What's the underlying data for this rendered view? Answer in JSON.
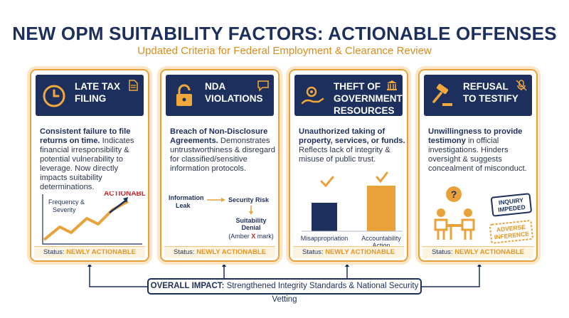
{
  "header": {
    "title": "NEW OPM SUITABILITY FACTORS: ACTIONABLE OFFENSES",
    "subtitle": "Updated Criteria for Federal Employment & Clearance Review"
  },
  "status_label": "Status:",
  "cards": [
    {
      "title": "LATE TAX\nFILING",
      "lead": "Consistent failure to file returns on time.",
      "body": " Indicates financial irresponsibility & potential vulnerability to leverage. Now directly impacts suitability determinations.",
      "status": "NEWLY ACTIONABLE",
      "viz": {
        "tag": "ACTIONABLE",
        "label": "Frequency &\nSeverity"
      }
    },
    {
      "title": "NDA\nVIOLATIONS",
      "lead": "Breach of Non-Disclosure Agreements.",
      "body": " Demonstrates untrustworthiness & disregard for classified/sensitive information protocols.",
      "status": "NEWLY ACTIONABLE",
      "viz": {
        "a": "Information\nLeak",
        "b": "Security Risk",
        "c": "Suitability\nDenial",
        "note": "(Amber X mark)",
        "x": "X"
      }
    },
    {
      "title": "THEFT OF\nGOVERNMENT\nRESOURCES",
      "lead": "Unauthorized taking of property, services, or funds.",
      "body": " Reflects lack of integrity & misuse of public trust.",
      "status": "NEWLY ACTIONABLE",
      "viz": {
        "categories": [
          "Misappropriation",
          "Accountability\nAction"
        ]
      }
    },
    {
      "title": "REFUSAL\nTO TESTIFY",
      "lead": "Unwillingness to provide testimony",
      "body": " in official investigations. Hinders oversight & suggests concealment of misconduct.",
      "status": "NEWLY ACTIONABLE",
      "viz": {
        "stamp1": "INQUIRY\nIMPEDED",
        "stamp2": "ADVERSE\nINFERENCE"
      }
    }
  ],
  "impact": {
    "label": "OVERALL IMPACT:",
    "text": "Strengthened Integrity Standards & National Security Vetting"
  },
  "colors": {
    "navy": "#1d2f5c",
    "amber": "#e9a13a",
    "red": "#c0282d"
  }
}
